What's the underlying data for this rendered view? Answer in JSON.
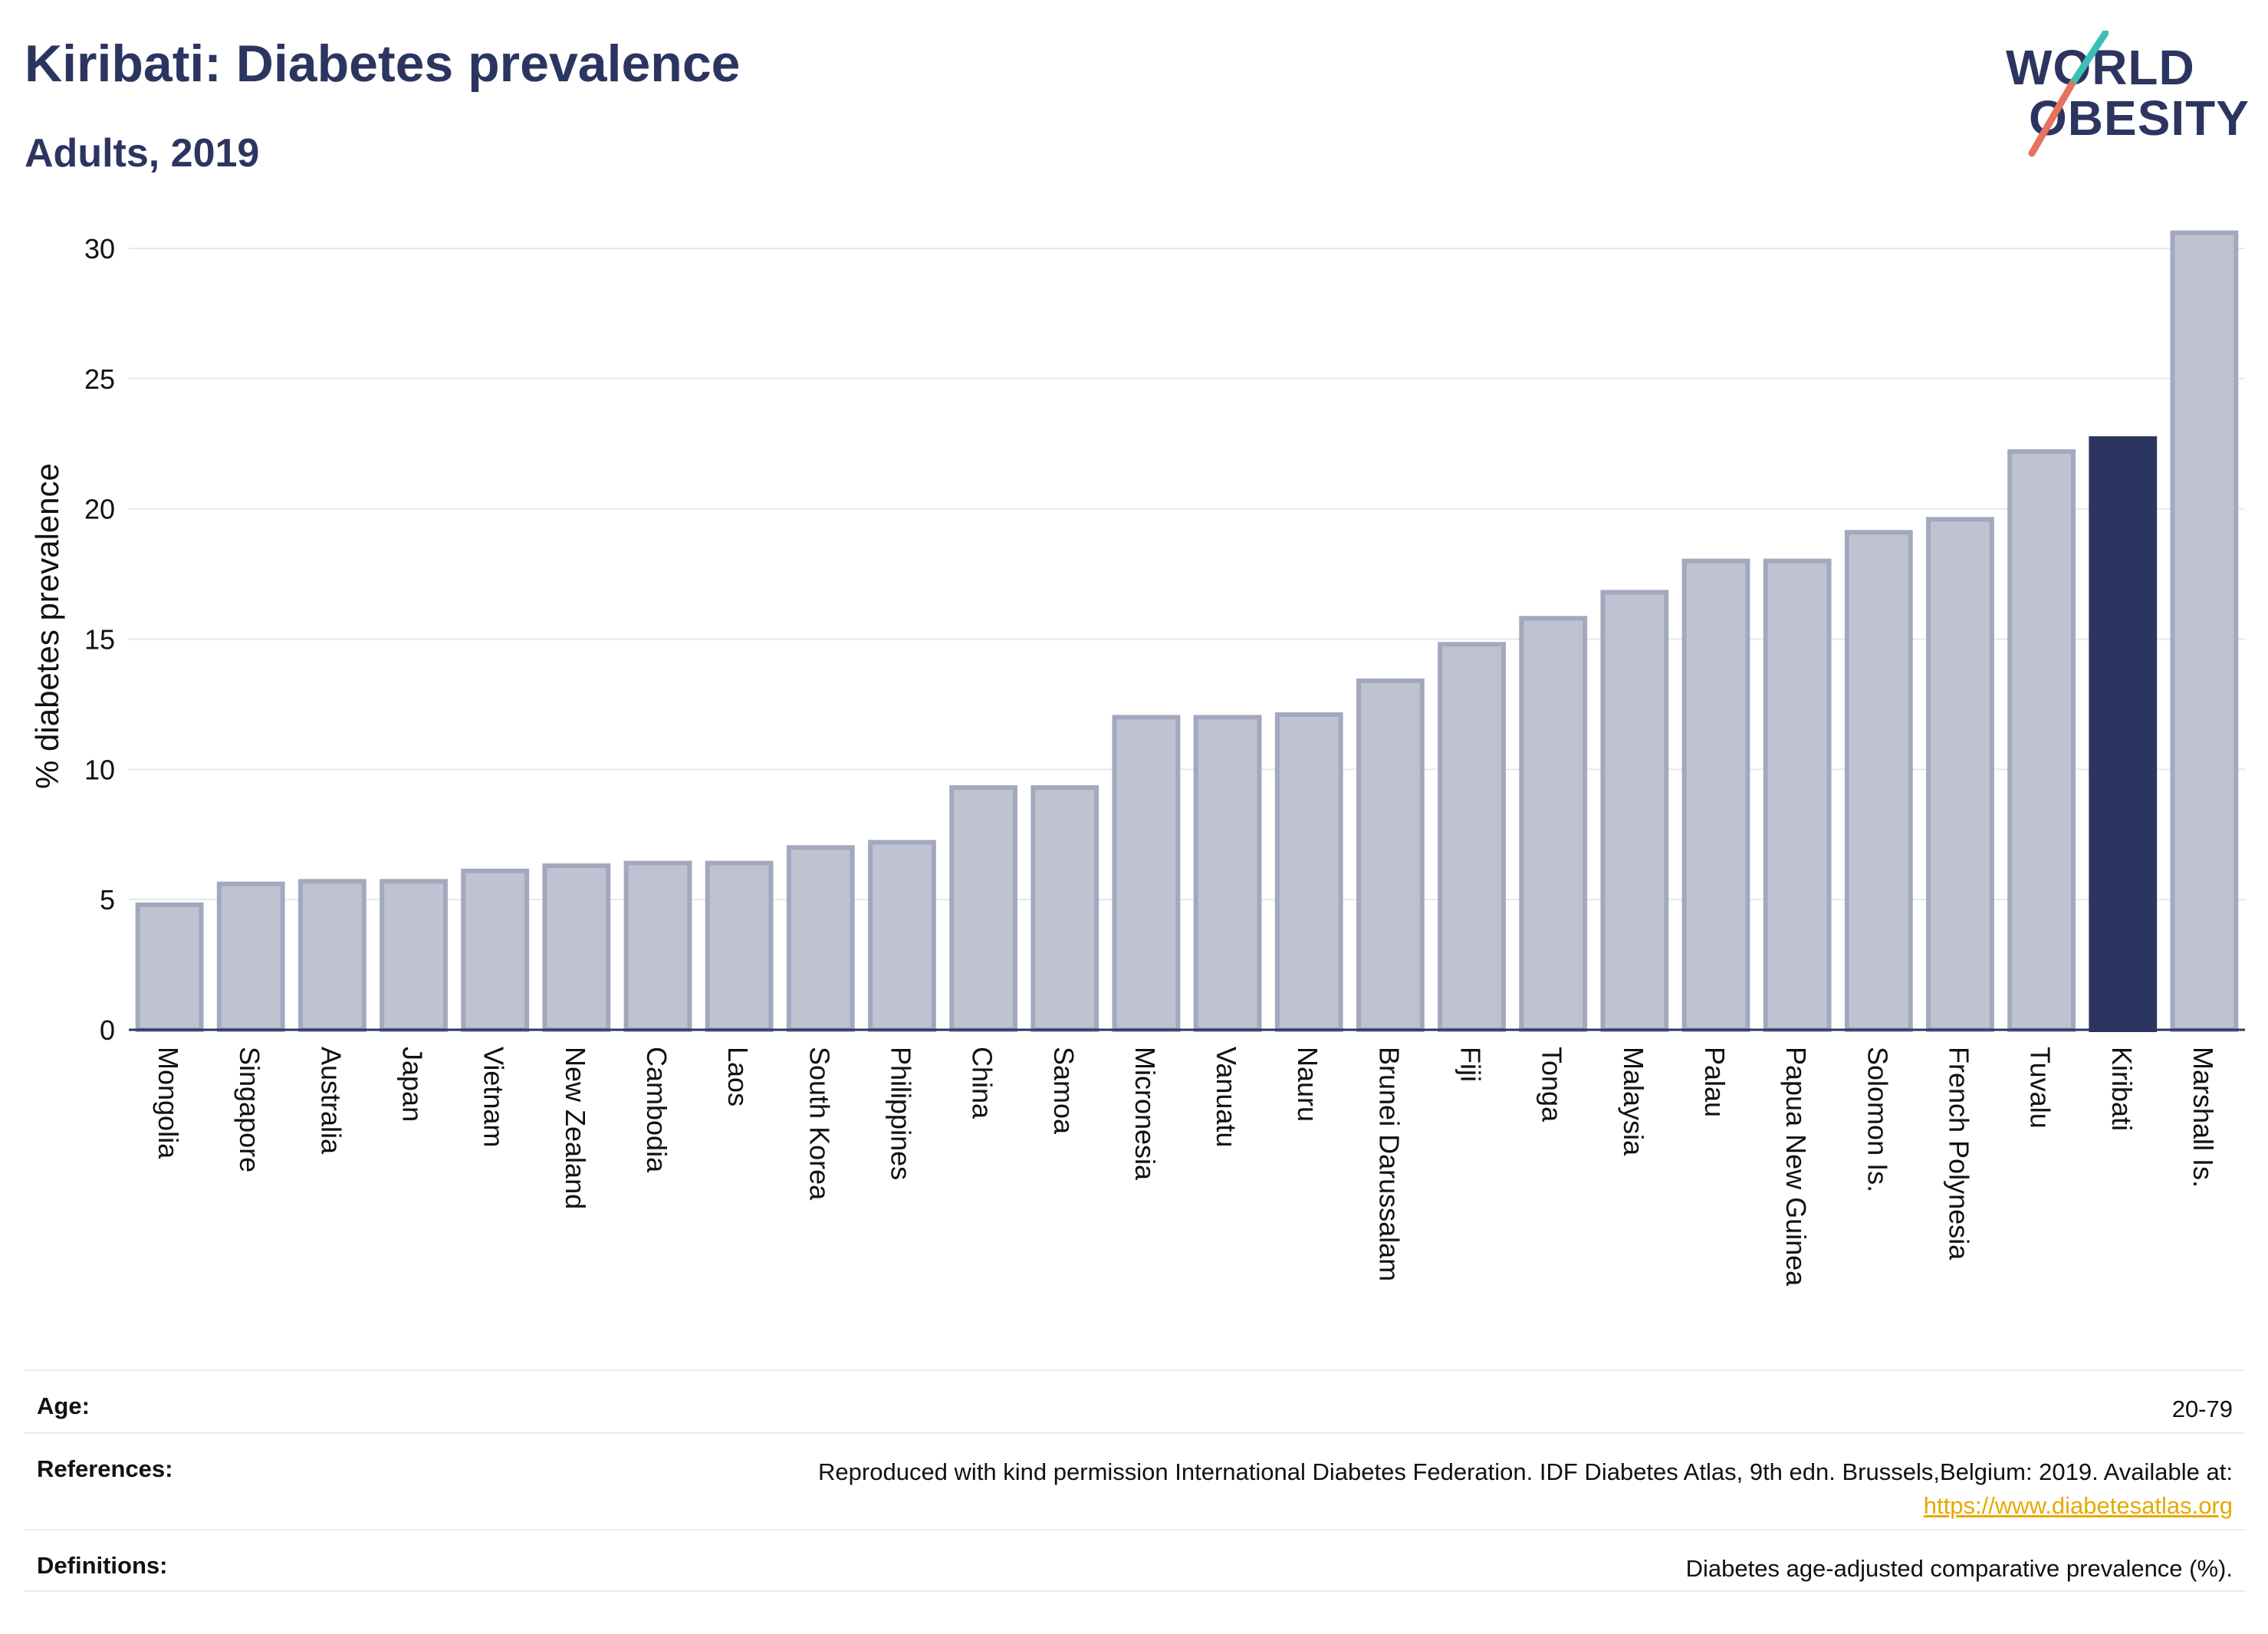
{
  "header": {
    "title": "Kiribati: Diabetes prevalence",
    "subtitle": "Adults, 2019"
  },
  "logo": {
    "line1": "WORLD",
    "line2": "OBESITY",
    "slash_colors": [
      "#3bbfb5",
      "#e5735f"
    ]
  },
  "chart_data": {
    "type": "bar",
    "ylabel": "% diabetes prevalence",
    "xlabel": "",
    "ylim": [
      0,
      31
    ],
    "yticks": [
      0,
      5,
      10,
      15,
      20,
      25,
      30
    ],
    "grid": true,
    "legend": "none",
    "categories": [
      "Mongolia",
      "Singapore",
      "Australia",
      "Japan",
      "Vietnam",
      "New Zealand",
      "Cambodia",
      "Laos",
      "South Korea",
      "Philippines",
      "China",
      "Samoa",
      "Micronesia",
      "Vanuatu",
      "Nauru",
      "Brunei Darussalam",
      "Fiji",
      "Tonga",
      "Malaysia",
      "Palau",
      "Papua New Guinea",
      "Solomon Is.",
      "French Polynesia",
      "Tuvalu",
      "Kiribati",
      "Marshall Is."
    ],
    "values": [
      4.8,
      5.6,
      5.7,
      5.7,
      6.1,
      6.3,
      6.4,
      6.4,
      7.0,
      7.2,
      9.3,
      9.3,
      12.0,
      12.0,
      12.1,
      13.4,
      14.8,
      15.8,
      16.8,
      18.0,
      18.0,
      19.1,
      19.6,
      22.2,
      22.7,
      30.6
    ],
    "highlight": "Kiribati",
    "colors": {
      "bar": "#bfc2d0",
      "bar_border": "#a3a8be",
      "highlight": "#2b3560",
      "grid": "#e6e8ec",
      "axis": "#2b3560"
    }
  },
  "footer": {
    "rows": [
      {
        "label": "Age:",
        "value": "20-79"
      },
      {
        "label": "References:",
        "value": "Reproduced with kind permission International Diabetes Federation. IDF Diabetes Atlas, 9th edn. Brussels,Belgium: 2019. Available at:",
        "link": "https://www.diabetesatlas.org"
      },
      {
        "label": "Definitions:",
        "value": "Diabetes age-adjusted comparative prevalence (%)."
      }
    ]
  }
}
